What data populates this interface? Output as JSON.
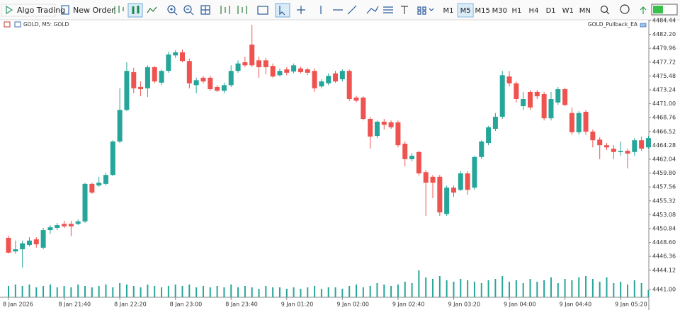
{
  "toolbar": {
    "buttons": [
      "Algo Trading",
      "New Order"
    ],
    "timeframes": [
      "M1",
      "M5",
      "M15",
      "M30",
      "H1",
      "H4",
      "D1",
      "W1",
      "MN"
    ],
    "active_timeframe": "M5"
  },
  "chart_data": {
    "type": "candlestick",
    "title": "GOLD, M5:  GOLD",
    "expert": "GOLD_Pullback_EA",
    "up_color": "#26a69a",
    "down_color": "#ef5350",
    "volume_color": "#26a69a",
    "categories": [
      "8 Jan 2026",
      null,
      null,
      null,
      null,
      null,
      null,
      null,
      "8 Jan 21:40",
      null,
      null,
      null,
      null,
      null,
      null,
      null,
      "8 Jan 22:20",
      null,
      null,
      null,
      null,
      null,
      null,
      null,
      "8 Jan 23:00",
      null,
      null,
      null,
      null,
      null,
      null,
      null,
      "8 Jan 23:40",
      null,
      null,
      null,
      null,
      null,
      null,
      null,
      "9 Jan 01:20",
      null,
      null,
      null,
      null,
      null,
      null,
      null,
      "9 Jan 02:00",
      null,
      null,
      null,
      null,
      null,
      null,
      null,
      "9 Jan 02:40",
      null,
      null,
      null,
      null,
      null,
      null,
      null,
      "9 Jan 03:20",
      null,
      null,
      null,
      null,
      null,
      null,
      null,
      "9 Jan 04:00",
      null,
      null,
      null,
      null,
      null,
      null,
      null,
      "9 Jan 04:40",
      null,
      null,
      null,
      null,
      null,
      null,
      null,
      "9 Jan 05:20",
      null,
      null,
      null,
      null
    ],
    "open": [
      4449.35,
      4447.15,
      4447.5,
      4448.2,
      4449.1,
      4447.75,
      4450.6,
      4450.95,
      4451.6,
      4451.6,
      4451.6,
      4452.0,
      4458.05,
      4457.8,
      4458.05,
      4459.5,
      4464.9,
      4470.0,
      4476.1,
      4473.7,
      4473.5,
      4476.9,
      4474.4,
      4476.3,
      4478.8,
      4479.3,
      4477.9,
      4474.0,
      4475.2,
      4475.2,
      4473.7,
      4473.1,
      4474.0,
      4476.3,
      4477.7,
      4480.55,
      4478.0,
      4478.0,
      4477.1,
      4475.6,
      4476.55,
      4476.2,
      4476.7,
      4476.55,
      4476.3,
      4473.8,
      4474.3,
      4475.9,
      4474.95,
      4476.3,
      4472.0,
      4472.0,
      4468.55,
      4465.8,
      4468.1,
      4468.0,
      4468.0,
      4464.55,
      4462.05,
      4463.2,
      4459.95,
      4459.2,
      4459.2,
      4453.2,
      4457.45,
      4457.1,
      4459.75,
      4457.45,
      4462.4,
      4464.65,
      4466.95,
      4468.9,
      4475.4,
      4474.3,
      4470.6,
      4472.9,
      4472.9,
      4472.55,
      4468.65,
      4471.2,
      4473.35,
      4469.5,
      4466.4,
      4469.7,
      4466.5,
      4465.2,
      4464.3,
      4463.75,
      4463.2,
      4463.4,
      4463.2,
      4465.1,
      4463.95
    ],
    "high": [
      4449.7,
      4448.9,
      4448.9,
      4449.45,
      4449.45,
      4450.95,
      4451.4,
      4451.75,
      4452.1,
      4452.1,
      4452.3,
      4458.25,
      4458.25,
      4459.2,
      4459.85,
      4465.1,
      4473.5,
      4477.7,
      4476.8,
      4474.6,
      4477.2,
      4477.1,
      4476.55,
      4479.4,
      4479.63,
      4479.75,
      4478.3,
      4475.2,
      4475.5,
      4475.5,
      4474.0,
      4474.4,
      4477.2,
      4478.0,
      4478.6,
      4483.75,
      4478.6,
      4478.4,
      4477.5,
      4476.7,
      4476.9,
      4477.5,
      4477.0,
      4476.8,
      4476.7,
      4474.95,
      4475.9,
      4476.3,
      4476.55,
      4476.55,
      4472.3,
      4472.2,
      4468.9,
      4468.3,
      4468.55,
      4468.3,
      4468.3,
      4464.9,
      4463.05,
      4463.4,
      4460.3,
      4459.5,
      4459.5,
      4457.8,
      4457.8,
      4460.1,
      4460.1,
      4462.6,
      4465.1,
      4467.4,
      4469.5,
      4476.3,
      4476.3,
      4474.6,
      4472.9,
      4473.2,
      4473.2,
      4472.9,
      4472.9,
      4473.7,
      4473.6,
      4470.4,
      4469.8,
      4470.0,
      4466.85,
      4465.6,
      4464.65,
      4464.3,
      4464.9,
      4463.75,
      4465.45,
      4465.7,
      4465.8
    ],
    "low": [
      4446.8,
      4446.8,
      4444.55,
      4447.95,
      4447.75,
      4447.5,
      4450.0,
      4450.6,
      4450.95,
      4449.6,
      4451.4,
      4451.75,
      4456.45,
      4457.6,
      4457.8,
      4459.3,
      4464.65,
      4469.8,
      4472.7,
      4472.2,
      4472.1,
      4474.3,
      4474.0,
      4476.0,
      4478.4,
      4477.7,
      4473.5,
      4472.7,
      4474.3,
      4473.1,
      4472.9,
      4472.7,
      4473.7,
      4476.0,
      4476.9,
      4476.9,
      4475.2,
      4475.75,
      4475.2,
      4475.4,
      4475.6,
      4475.9,
      4475.9,
      4475.6,
      4472.9,
      4473.5,
      4474.0,
      4474.4,
      4474.6,
      4471.4,
      4471.2,
      4468.3,
      4463.75,
      4465.45,
      4466.85,
      4466.95,
      4463.95,
      4460.9,
      4461.7,
      4459.4,
      4452.9,
      4455.75,
      4452.9,
      4452.9,
      4455.95,
      4456.9,
      4456.3,
      4457.1,
      4462.05,
      4464.3,
      4466.6,
      4468.55,
      4473.8,
      4471.2,
      4470.0,
      4470.0,
      4471.75,
      4468.3,
      4468.3,
      4470.8,
      4470.6,
      4466.0,
      4466.0,
      4466.0,
      4463.95,
      4462.05,
      4463.5,
      4462.05,
      4462.6,
      4460.55,
      4462.6,
      4463.4,
      4463.75
    ],
    "close": [
      4446.95,
      4447.5,
      4448.45,
      4448.9,
      4448.3,
      4450.6,
      4451.05,
      4451.4,
      4451.2,
      4451.2,
      4452.0,
      4458.05,
      4456.65,
      4458.25,
      4459.5,
      4464.9,
      4470.0,
      4476.3,
      4473.5,
      4473.35,
      4476.9,
      4474.6,
      4476.3,
      4478.95,
      4479.3,
      4477.9,
      4474.3,
      4474.8,
      4474.6,
      4473.35,
      4473.1,
      4474.0,
      4476.3,
      4477.5,
      4477.2,
      4477.2,
      4476.9,
      4476.9,
      4475.4,
      4476.3,
      4476.0,
      4477.2,
      4476.1,
      4476.0,
      4473.5,
      4474.6,
      4475.5,
      4474.6,
      4476.3,
      4471.75,
      4471.5,
      4468.55,
      4465.7,
      4468.1,
      4467.6,
      4467.2,
      4464.3,
      4462.05,
      4462.6,
      4459.75,
      4458.25,
      4458.25,
      4453.45,
      4457.45,
      4456.65,
      4459.75,
      4457.1,
      4462.4,
      4464.9,
      4467.2,
      4468.9,
      4475.6,
      4474.3,
      4471.75,
      4471.75,
      4470.4,
      4472.2,
      4468.65,
      4471.75,
      4473.35,
      4470.8,
      4466.4,
      4469.5,
      4466.5,
      4465.1,
      4464.3,
      4463.95,
      4463.2,
      4463.4,
      4462.95,
      4465.1,
      4463.75,
      4465.45
    ],
    "volume": [
      16,
      18,
      16,
      18,
      14,
      16,
      18,
      14,
      16,
      14,
      18,
      16,
      14,
      16,
      18,
      14,
      20,
      18,
      16,
      14,
      18,
      16,
      14,
      16,
      18,
      16,
      18,
      14,
      16,
      14,
      16,
      14,
      18,
      14,
      16,
      14,
      12,
      16,
      14,
      14,
      12,
      14,
      12,
      14,
      16,
      12,
      14,
      14,
      12,
      16,
      18,
      14,
      16,
      20,
      18,
      16,
      18,
      22,
      20,
      38,
      28,
      26,
      30,
      24,
      22,
      26,
      24,
      22,
      20,
      24,
      26,
      30,
      22,
      24,
      20,
      26,
      22,
      24,
      28,
      20,
      26,
      24,
      28,
      30,
      26,
      22,
      28,
      20,
      22,
      18,
      24,
      20,
      10
    ],
    "volume_lim": [
      0,
      40
    ],
    "ylim": [
      4439.75,
      4484.55
    ],
    "yticks": [
      4484.44,
      {
        "value": 4482.2,
        "label": "4482.20"
      },
      4479.96,
      4477.72,
      4475.48,
      4473.24,
      {
        "value": 4471,
        "label": "4471.00"
      },
      4468.76,
      4466.52,
      4464.28,
      4462.04,
      {
        "value": 4459.8,
        "label": "4459.80"
      },
      4457.56,
      4455.32,
      4453.08,
      4450.84,
      {
        "value": 4448.6,
        "label": "4448.60"
      },
      4446.36,
      4444.12,
      {
        "value": 4441,
        "label": "4441.00"
      }
    ],
    "grid": false
  }
}
